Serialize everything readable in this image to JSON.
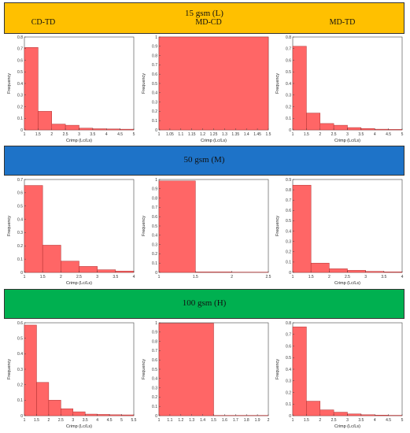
{
  "rows": [
    {
      "label": "15 gsm (L)",
      "color": "#FFC000"
    },
    {
      "label": "50 gsm (M)",
      "color": "#1E73C8"
    },
    {
      "label": "100 gsm (H)",
      "color": "#00B050"
    }
  ],
  "columns": [
    "CD-TD",
    "MD-CD",
    "MD-TD"
  ],
  "bar_color": "#FF6666",
  "bar_stroke": "#B03030",
  "chart_data": [
    {
      "type": "bar",
      "panel": "15 gsm (L) CD-TD",
      "xlabel": "Crimp (Lc/Ls)",
      "ylabel": "Frequency",
      "xlim": [
        1,
        5
      ],
      "ylim": [
        0,
        0.8
      ],
      "xticks": [
        1,
        1.5,
        2,
        2.5,
        3,
        3.5,
        4,
        4.5,
        5
      ],
      "xticklabels": [
        "1",
        "1.5",
        "2",
        "2.5",
        "3",
        "3.5",
        "4",
        "4.5",
        "5"
      ],
      "yticks": [
        0,
        0.1,
        0.2,
        0.3,
        0.4,
        0.5,
        0.6,
        0.7,
        0.8
      ],
      "yticklabels": [
        "0",
        "0.1",
        "0.2",
        "0.3",
        "0.4",
        "0.5",
        "0.6",
        "0.7",
        "0.8"
      ],
      "bins": [
        [
          1,
          1.5
        ],
        [
          1.5,
          2
        ],
        [
          2,
          2.5
        ],
        [
          2.5,
          3
        ],
        [
          3,
          3.5
        ],
        [
          3.5,
          4
        ],
        [
          4,
          4.5
        ],
        [
          4.5,
          5
        ]
      ],
      "values": [
        0.71,
        0.16,
        0.05,
        0.04,
        0.015,
        0.01,
        0.008,
        0.006
      ]
    },
    {
      "type": "bar",
      "panel": "15 gsm (L) MD-CD",
      "xlabel": "Crimp (Lc/Ls)",
      "ylabel": "Frequency",
      "xlim": [
        1,
        1.5
      ],
      "ylim": [
        0,
        1
      ],
      "xticks": [
        1,
        1.05,
        1.1,
        1.15,
        1.2,
        1.25,
        1.3,
        1.35,
        1.4,
        1.45,
        1.5
      ],
      "xticklabels": [
        "1",
        "1.05",
        "1.1",
        "1.15",
        "1.2",
        "1.25",
        "1.3",
        "1.35",
        "1.4",
        "1.45",
        "1.5"
      ],
      "yticks": [
        0,
        0.1,
        0.2,
        0.3,
        0.4,
        0.5,
        0.6,
        0.7,
        0.8,
        0.9,
        1
      ],
      "yticklabels": [
        "0",
        "0.1",
        "0.2",
        "0.3",
        "0.4",
        "0.5",
        "0.6",
        "0.7",
        "0.8",
        "0.9",
        "1"
      ],
      "bins": [
        [
          1,
          1.5
        ]
      ],
      "values": [
        1.0
      ]
    },
    {
      "type": "bar",
      "panel": "15 gsm (L) MD-TD",
      "xlabel": "Crimp (Lc/Ls)",
      "ylabel": "Frequency",
      "xlim": [
        1,
        5
      ],
      "ylim": [
        0,
        0.8
      ],
      "xticks": [
        1,
        1.5,
        2,
        2.5,
        3,
        3.5,
        4,
        4.5,
        5
      ],
      "xticklabels": [
        "1",
        "1.5",
        "2",
        "2.5",
        "3",
        "3.5",
        "4",
        "4.5",
        "5"
      ],
      "yticks": [
        0,
        0.1,
        0.2,
        0.3,
        0.4,
        0.5,
        0.6,
        0.7,
        0.8
      ],
      "yticklabels": [
        "0",
        "0.1",
        "0.2",
        "0.3",
        "0.4",
        "0.5",
        "0.6",
        "0.7",
        "0.8"
      ],
      "bins": [
        [
          1,
          1.5
        ],
        [
          1.5,
          2
        ],
        [
          2,
          2.5
        ],
        [
          2.5,
          3
        ],
        [
          3,
          3.5
        ],
        [
          3.5,
          4
        ],
        [
          4,
          4.5
        ],
        [
          4.5,
          5
        ]
      ],
      "values": [
        0.72,
        0.145,
        0.055,
        0.04,
        0.02,
        0.012,
        0.006,
        0.004
      ]
    },
    {
      "type": "bar",
      "panel": "50 gsm (M) CD-TD",
      "xlabel": "Crimp (Lc/Ls)",
      "ylabel": "Frequency",
      "xlim": [
        1,
        4
      ],
      "ylim": [
        0,
        0.7
      ],
      "xticks": [
        1,
        1.5,
        2,
        2.5,
        3,
        3.5,
        4
      ],
      "xticklabels": [
        "1",
        "1.5",
        "2",
        "2.5",
        "3",
        "3.5",
        "4"
      ],
      "yticks": [
        0,
        0.1,
        0.2,
        0.3,
        0.4,
        0.5,
        0.6,
        0.7
      ],
      "yticklabels": [
        "0",
        "0.1",
        "0.2",
        "0.3",
        "0.4",
        "0.5",
        "0.6",
        "0.7"
      ],
      "bins": [
        [
          1,
          1.5
        ],
        [
          1.5,
          2
        ],
        [
          2,
          2.5
        ],
        [
          2.5,
          3
        ],
        [
          3,
          3.5
        ],
        [
          3.5,
          4
        ]
      ],
      "values": [
        0.655,
        0.205,
        0.085,
        0.045,
        0.02,
        0.01
      ]
    },
    {
      "type": "bar",
      "panel": "50 gsm (M) MD-CD",
      "xlabel": "",
      "ylabel": "Frequency",
      "xlim": [
        1,
        2.5
      ],
      "ylim": [
        0,
        1
      ],
      "xticks": [
        1,
        1.5,
        2,
        2.5
      ],
      "xticklabels": [
        "1",
        "1.5",
        "2",
        "2.5"
      ],
      "yticks": [
        0,
        0.1,
        0.2,
        0.3,
        0.4,
        0.5,
        0.6,
        0.7,
        0.8,
        0.9,
        1
      ],
      "yticklabels": [
        "0",
        "0.1",
        "0.2",
        "0.3",
        "0.4",
        "0.5",
        "0.6",
        "0.7",
        "0.8",
        "0.9",
        "1"
      ],
      "bins": [
        [
          1,
          1.5
        ],
        [
          1.5,
          2
        ],
        [
          2,
          2.5
        ]
      ],
      "values": [
        0.985,
        0.005,
        0.003
      ]
    },
    {
      "type": "bar",
      "panel": "50 gsm (M) MD-TD",
      "xlabel": "Crimp (Lc/Ls)",
      "ylabel": "Frequency",
      "xlim": [
        1,
        4
      ],
      "ylim": [
        0,
        0.9
      ],
      "xticks": [
        1,
        1.5,
        2,
        2.5,
        3,
        3.5,
        4
      ],
      "xticklabels": [
        "1",
        "1.5",
        "2",
        "2.5",
        "3",
        "3.5",
        "4"
      ],
      "yticks": [
        0,
        0.1,
        0.2,
        0.3,
        0.4,
        0.5,
        0.6,
        0.7,
        0.8,
        0.9
      ],
      "yticklabels": [
        "0",
        "0.1",
        "0.2",
        "0.3",
        "0.4",
        "0.5",
        "0.6",
        "0.7",
        "0.8",
        "0.9"
      ],
      "bins": [
        [
          1,
          1.5
        ],
        [
          1.5,
          2
        ],
        [
          2,
          2.5
        ],
        [
          2.5,
          3
        ],
        [
          3,
          3.5
        ],
        [
          3.5,
          4
        ]
      ],
      "values": [
        0.845,
        0.09,
        0.035,
        0.02,
        0.01,
        0.005
      ]
    },
    {
      "type": "bar",
      "panel": "100 gsm (H) CD-TD",
      "xlabel": "Crimp (Lc/Ls)",
      "ylabel": "Frequency",
      "xlim": [
        1,
        5.5
      ],
      "ylim": [
        0,
        0.6
      ],
      "xticks": [
        1,
        1.5,
        2,
        2.5,
        3,
        3.5,
        4,
        4.5,
        5,
        5.5
      ],
      "xticklabels": [
        "1",
        "1.5",
        "2",
        "2.5",
        "3",
        "3.5",
        "4",
        "4.5",
        "5",
        "5.5"
      ],
      "yticks": [
        0,
        0.1,
        0.2,
        0.3,
        0.4,
        0.5,
        0.6
      ],
      "yticklabels": [
        "0",
        "0.1",
        "0.2",
        "0.3",
        "0.4",
        "0.5",
        "0.6"
      ],
      "bins": [
        [
          1,
          1.5
        ],
        [
          1.5,
          2
        ],
        [
          2,
          2.5
        ],
        [
          2.5,
          3
        ],
        [
          3,
          3.5
        ],
        [
          3.5,
          4
        ],
        [
          4,
          4.5
        ],
        [
          4.5,
          5
        ],
        [
          5,
          5.5
        ]
      ],
      "values": [
        0.585,
        0.215,
        0.1,
        0.045,
        0.025,
        0.01,
        0.008,
        0.006,
        0.005
      ]
    },
    {
      "type": "bar",
      "panel": "100 gsm (H) MD-CD",
      "xlabel": "",
      "ylabel": "Frequency",
      "xlim": [
        1,
        2
      ],
      "ylim": [
        0,
        1
      ],
      "xticks": [
        1,
        1.1,
        1.2,
        1.3,
        1.4,
        1.5,
        1.6,
        1.7,
        1.8,
        1.9,
        2
      ],
      "xticklabels": [
        "1",
        "1.1",
        "1.2",
        "1.3",
        "1.4",
        "1.5",
        "1.6",
        "1.7",
        "1.8",
        "1.9",
        "2"
      ],
      "yticks": [
        0,
        0.1,
        0.2,
        0.3,
        0.4,
        0.5,
        0.6,
        0.7,
        0.8,
        0.9,
        1
      ],
      "yticklabels": [
        "0",
        "0.1",
        "0.2",
        "0.3",
        "0.4",
        "0.5",
        "0.6",
        "0.7",
        "0.8",
        "0.9",
        "1"
      ],
      "bins": [
        [
          1,
          1.5
        ],
        [
          1.5,
          2
        ]
      ],
      "values": [
        0.995,
        0.003
      ]
    },
    {
      "type": "bar",
      "panel": "100 gsm (H) MD-TD",
      "xlabel": "Crimp (Lc/Ls)",
      "ylabel": "Frequency",
      "xlim": [
        1,
        5
      ],
      "ylim": [
        0,
        0.8
      ],
      "xticks": [
        1,
        1.5,
        2,
        2.5,
        3,
        3.5,
        4,
        4.5,
        5
      ],
      "xticklabels": [
        "1",
        "1.5",
        "2",
        "2.5",
        "3",
        "3.5",
        "4",
        "4.5",
        "5"
      ],
      "yticks": [
        0,
        0.1,
        0.2,
        0.3,
        0.4,
        0.5,
        0.6,
        0.7,
        0.8
      ],
      "yticklabels": [
        "0",
        "0.1",
        "0.2",
        "0.3",
        "0.4",
        "0.5",
        "0.6",
        "0.7",
        "0.8"
      ],
      "bins": [
        [
          1,
          1.5
        ],
        [
          1.5,
          2
        ],
        [
          2,
          2.5
        ],
        [
          2.5,
          3
        ],
        [
          3,
          3.5
        ],
        [
          3.5,
          4
        ],
        [
          4,
          4.5
        ],
        [
          4.5,
          5
        ]
      ],
      "values": [
        0.765,
        0.125,
        0.05,
        0.03,
        0.015,
        0.008,
        0.005,
        0.003
      ]
    }
  ]
}
